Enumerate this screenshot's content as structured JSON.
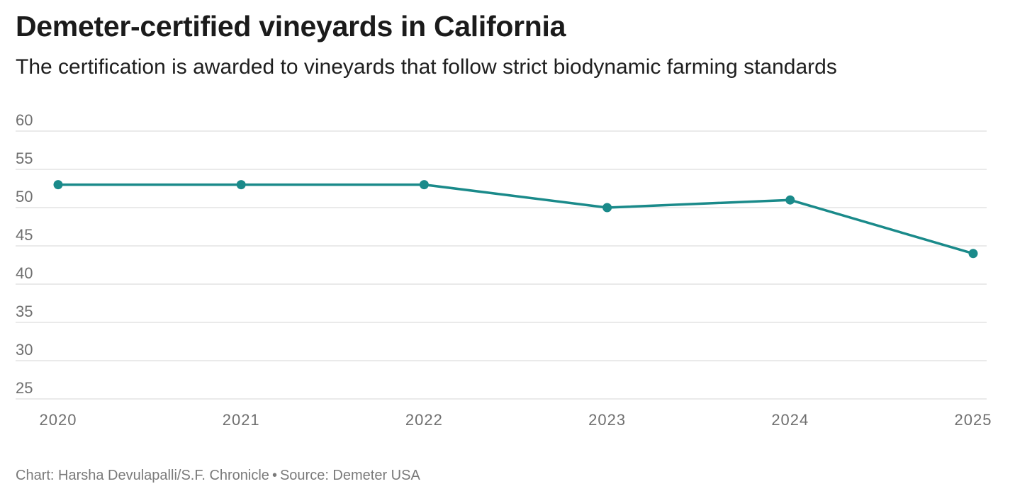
{
  "title": "Demeter-certified vineyards in California",
  "subtitle": "The certification is awarded to vineyards that follow strict biodynamic farming standards",
  "credit": {
    "chart": "Chart: Harsha Devulapalli/S.F. Chronicle",
    "separator": "•",
    "source": "Source: Demeter USA"
  },
  "colors": {
    "line": "#1a8a8a",
    "grid": "#e3e3e3",
    "tick_text": "#6f6f6f"
  },
  "chart_data": {
    "type": "line",
    "x": [
      "2020",
      "2021",
      "2022",
      "2023",
      "2024",
      "2025"
    ],
    "series": [
      {
        "values": [
          53,
          53,
          53,
          50,
          51,
          44
        ]
      }
    ],
    "y_ticks": [
      25,
      30,
      35,
      40,
      45,
      50,
      55,
      60
    ],
    "ylim": [
      25,
      60
    ],
    "grid": true,
    "xlabel": "",
    "ylabel": ""
  }
}
